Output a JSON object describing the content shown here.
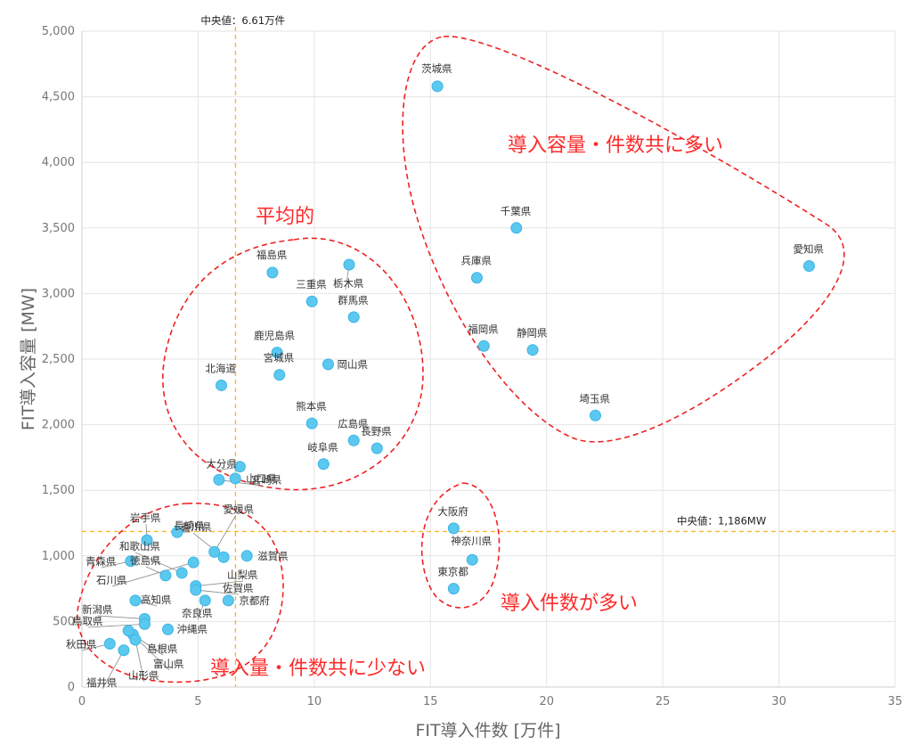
{
  "chart_data": {
    "type": "scatter",
    "xlabel": "FIT導入件数 [万件]",
    "ylabel": "FIT導入容量 [MW]",
    "xlim": [
      0,
      35
    ],
    "ylim": [
      0,
      5000
    ],
    "x_ticks": [
      0,
      5,
      10,
      15,
      20,
      25,
      30,
      35
    ],
    "y_ticks": [
      "0",
      "500",
      "1,000",
      "1,500",
      "2,000",
      "2,500",
      "3,000",
      "3,500",
      "4,000",
      "4,500",
      "5,000"
    ],
    "grid": true,
    "medians": {
      "x": {
        "value": 6.61,
        "label": "中央値：6.61万件"
      },
      "y": {
        "value": 1186,
        "label": "中央値：1,186MW"
      }
    },
    "groups": [
      {
        "label": "導入容量・件数共に多い",
        "color": "#ee2222"
      },
      {
        "label": "平均的",
        "color": "#ee2222"
      },
      {
        "label": "導入件数が多い",
        "color": "#ee2222"
      },
      {
        "label": "導入量・件数共に少ない",
        "color": "#ee2222"
      }
    ],
    "points": [
      {
        "name": "茨城県",
        "x": 15.3,
        "y": 4580
      },
      {
        "name": "千葉県",
        "x": 18.7,
        "y": 3500
      },
      {
        "name": "愛知県",
        "x": 31.3,
        "y": 3210
      },
      {
        "name": "兵庫県",
        "x": 17.0,
        "y": 3120
      },
      {
        "name": "福岡県",
        "x": 17.3,
        "y": 2600
      },
      {
        "name": "静岡県",
        "x": 19.4,
        "y": 2570
      },
      {
        "name": "埼玉県",
        "x": 22.1,
        "y": 2070
      },
      {
        "name": "福島県",
        "x": 8.2,
        "y": 3160
      },
      {
        "name": "栃木県",
        "x": 11.5,
        "y": 3220
      },
      {
        "name": "三重県",
        "x": 9.9,
        "y": 2940
      },
      {
        "name": "群馬県",
        "x": 11.7,
        "y": 2820
      },
      {
        "name": "鹿児島県",
        "x": 8.4,
        "y": 2550
      },
      {
        "name": "宮城県",
        "x": 8.5,
        "y": 2380
      },
      {
        "name": "岡山県",
        "x": 10.6,
        "y": 2460
      },
      {
        "name": "北海道",
        "x": 6.0,
        "y": 2300
      },
      {
        "name": "熊本県",
        "x": 9.9,
        "y": 2010
      },
      {
        "name": "広島県",
        "x": 11.7,
        "y": 1880
      },
      {
        "name": "長野県",
        "x": 12.7,
        "y": 1820
      },
      {
        "name": "岐阜県",
        "x": 10.4,
        "y": 1700
      },
      {
        "name": "大分県",
        "x": 6.8,
        "y": 1680
      },
      {
        "name": "宮崎県",
        "x": 5.9,
        "y": 1580
      },
      {
        "name": "山口県",
        "x": 6.6,
        "y": 1590
      },
      {
        "name": "大阪府",
        "x": 16.0,
        "y": 1210
      },
      {
        "name": "神奈川県",
        "x": 16.8,
        "y": 970
      },
      {
        "name": "東京都",
        "x": 16.0,
        "y": 750
      },
      {
        "name": "岩手県",
        "x": 2.8,
        "y": 1120
      },
      {
        "name": "長崎県",
        "x": 4.1,
        "y": 1180
      },
      {
        "name": "愛媛県",
        "x": 5.7,
        "y": 1030
      },
      {
        "name": "香川県",
        "x": 6.1,
        "y": 990
      },
      {
        "name": "滋賀県",
        "x": 7.1,
        "y": 1000
      },
      {
        "name": "和歌山県",
        "x": 4.3,
        "y": 870
      },
      {
        "name": "青森県",
        "x": 2.1,
        "y": 960
      },
      {
        "name": "徳島県",
        "x": 3.6,
        "y": 850
      },
      {
        "name": "石川県",
        "x": 4.8,
        "y": 950
      },
      {
        "name": "山梨県",
        "x": 4.9,
        "y": 770
      },
      {
        "name": "佐賀県",
        "x": 4.9,
        "y": 740
      },
      {
        "name": "高知県",
        "x": 2.3,
        "y": 660
      },
      {
        "name": "京都府",
        "x": 6.3,
        "y": 660
      },
      {
        "name": "奈良県",
        "x": 5.3,
        "y": 660
      },
      {
        "name": "新潟県",
        "x": 2.7,
        "y": 520
      },
      {
        "name": "沖縄県",
        "x": 3.7,
        "y": 440
      },
      {
        "name": "鳥取県",
        "x": 2.7,
        "y": 480
      },
      {
        "name": "島根県",
        "x": 2.2,
        "y": 400
      },
      {
        "name": "秋田県",
        "x": 1.2,
        "y": 330
      },
      {
        "name": "富山県",
        "x": 2.0,
        "y": 430
      },
      {
        "name": "山形県",
        "x": 2.3,
        "y": 360
      },
      {
        "name": "福井県",
        "x": 1.8,
        "y": 280
      }
    ]
  }
}
